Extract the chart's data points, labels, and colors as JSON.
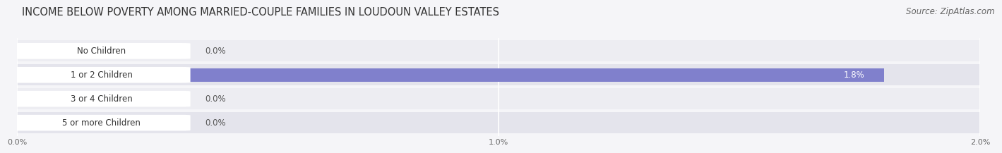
{
  "title": "INCOME BELOW POVERTY AMONG MARRIED-COUPLE FAMILIES IN LOUDOUN VALLEY ESTATES",
  "source": "Source: ZipAtlas.com",
  "categories": [
    "No Children",
    "1 or 2 Children",
    "3 or 4 Children",
    "5 or more Children"
  ],
  "values": [
    0.0,
    1.8,
    0.0,
    0.0
  ],
  "bar_colors": [
    "#5ecfcf",
    "#8080cc",
    "#f090a0",
    "#f5c8a0"
  ],
  "xlim_max": 2.0,
  "xtick_labels": [
    "0.0%",
    "1.0%",
    "2.0%"
  ],
  "title_fontsize": 10.5,
  "source_fontsize": 8.5,
  "label_fontsize": 8.5,
  "value_fontsize": 8.5,
  "background_color": "#f5f5f8",
  "row_bg_colors": [
    "#ededf2",
    "#e4e4ec"
  ]
}
